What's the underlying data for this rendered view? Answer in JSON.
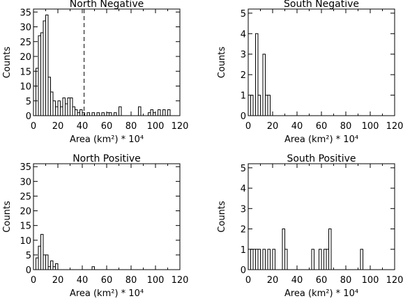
{
  "chart_data": [
    {
      "type": "histogram",
      "title": "North Negative",
      "xlabel": "Area (km²) * 10⁴",
      "ylabel": "Counts",
      "xlim": [
        0,
        120
      ],
      "ylim": [
        0,
        36
      ],
      "x_ticks": [
        "0",
        "20",
        "40",
        "60",
        "80",
        "100",
        "120"
      ],
      "y_ticks": [
        "0",
        "5",
        "10",
        "15",
        "20",
        "25",
        "30",
        "35"
      ],
      "bin_width": 2,
      "bins": [
        [
          2,
          4,
          16
        ],
        [
          4,
          6,
          27
        ],
        [
          6,
          8,
          28
        ],
        [
          8,
          10,
          32
        ],
        [
          10,
          12,
          34
        ],
        [
          12,
          14,
          13
        ],
        [
          14,
          16,
          8
        ],
        [
          16,
          18,
          5
        ],
        [
          18,
          20,
          3
        ],
        [
          20,
          22,
          5
        ],
        [
          22,
          24,
          3
        ],
        [
          24,
          26,
          6
        ],
        [
          26,
          28,
          4
        ],
        [
          28,
          30,
          6
        ],
        [
          30,
          32,
          6
        ],
        [
          32,
          34,
          3
        ],
        [
          34,
          36,
          2
        ],
        [
          36,
          38,
          1
        ],
        [
          38,
          40,
          2
        ],
        [
          40,
          42,
          1
        ],
        [
          42,
          44,
          0
        ],
        [
          44,
          46,
          1
        ],
        [
          46,
          48,
          0
        ],
        [
          48,
          50,
          1
        ],
        [
          50,
          52,
          0
        ],
        [
          52,
          54,
          1
        ],
        [
          54,
          56,
          0
        ],
        [
          56,
          58,
          1
        ],
        [
          58,
          60,
          0
        ],
        [
          60,
          62,
          1
        ],
        [
          62,
          64,
          1
        ],
        [
          64,
          66,
          0
        ],
        [
          66,
          68,
          1
        ],
        [
          68,
          70,
          0
        ],
        [
          70,
          72,
          3
        ],
        [
          72,
          74,
          0
        ],
        [
          84,
          86,
          0
        ],
        [
          86,
          88,
          3
        ],
        [
          88,
          90,
          0
        ],
        [
          94,
          96,
          1
        ],
        [
          96,
          98,
          2
        ],
        [
          98,
          100,
          1
        ],
        [
          100,
          102,
          0
        ],
        [
          102,
          104,
          2
        ],
        [
          104,
          106,
          0
        ],
        [
          106,
          108,
          2
        ],
        [
          108,
          110,
          0
        ],
        [
          110,
          112,
          2
        ],
        [
          112,
          114,
          0
        ]
      ],
      "reference_line_x": 41.5
    },
    {
      "type": "histogram",
      "title": "South Negative",
      "xlabel": "Area (km²) * 10⁴",
      "ylabel": "Counts",
      "xlim": [
        0,
        120
      ],
      "ylim": [
        0,
        5.2
      ],
      "x_ticks": [
        "0",
        "20",
        "40",
        "60",
        "80",
        "100",
        "120"
      ],
      "y_ticks": [
        "0",
        "1",
        "2",
        "3",
        "4",
        "5"
      ],
      "bin_width": 2,
      "bins": [
        [
          2,
          4,
          1
        ],
        [
          4,
          6,
          0
        ],
        [
          6,
          8,
          4
        ],
        [
          8,
          10,
          1
        ],
        [
          10,
          12,
          0
        ],
        [
          12,
          14,
          3
        ],
        [
          14,
          16,
          1
        ],
        [
          16,
          18,
          1
        ]
      ]
    },
    {
      "type": "histogram",
      "title": "North Positive",
      "xlabel": "Area (km²) * 10⁴",
      "ylabel": "Counts",
      "xlim": [
        0,
        120
      ],
      "ylim": [
        0,
        36
      ],
      "x_ticks": [
        "0",
        "20",
        "40",
        "60",
        "80",
        "100",
        "120"
      ],
      "y_ticks": [
        "0",
        "5",
        "10",
        "15",
        "20",
        "25",
        "30",
        "35"
      ],
      "bin_width": 2,
      "bins": [
        [
          2,
          4,
          4
        ],
        [
          4,
          6,
          8
        ],
        [
          6,
          8,
          12
        ],
        [
          8,
          10,
          5
        ],
        [
          10,
          12,
          5
        ],
        [
          12,
          14,
          1
        ],
        [
          14,
          16,
          3
        ],
        [
          16,
          18,
          1
        ],
        [
          18,
          20,
          2
        ],
        [
          20,
          22,
          0
        ],
        [
          48,
          50,
          1
        ],
        [
          50,
          52,
          0
        ]
      ]
    },
    {
      "type": "histogram",
      "title": "South Positive",
      "xlabel": "Area (km²) * 10⁴",
      "ylabel": "Counts",
      "xlim": [
        0,
        120
      ],
      "ylim": [
        0,
        5.2
      ],
      "x_ticks": [
        "0",
        "20",
        "40",
        "60",
        "80",
        "100",
        "120"
      ],
      "y_ticks": [
        "0",
        "1",
        "2",
        "3",
        "4",
        "5"
      ],
      "bin_width": 2,
      "bins": [
        [
          2,
          4,
          1
        ],
        [
          4,
          6,
          1
        ],
        [
          6,
          8,
          1
        ],
        [
          8,
          10,
          1
        ],
        [
          10,
          12,
          0
        ],
        [
          12,
          14,
          1
        ],
        [
          14,
          16,
          0
        ],
        [
          16,
          18,
          1
        ],
        [
          18,
          20,
          0
        ],
        [
          20,
          22,
          1
        ],
        [
          22,
          24,
          0
        ],
        [
          28,
          30,
          2
        ],
        [
          30,
          32,
          1
        ],
        [
          32,
          34,
          0
        ],
        [
          52,
          54,
          1
        ],
        [
          54,
          56,
          0
        ],
        [
          58,
          60,
          1
        ],
        [
          60,
          62,
          0
        ],
        [
          62,
          64,
          1
        ],
        [
          64,
          66,
          1
        ],
        [
          66,
          68,
          2
        ],
        [
          68,
          70,
          0
        ],
        [
          92,
          94,
          1
        ],
        [
          94,
          96,
          0
        ]
      ]
    }
  ]
}
